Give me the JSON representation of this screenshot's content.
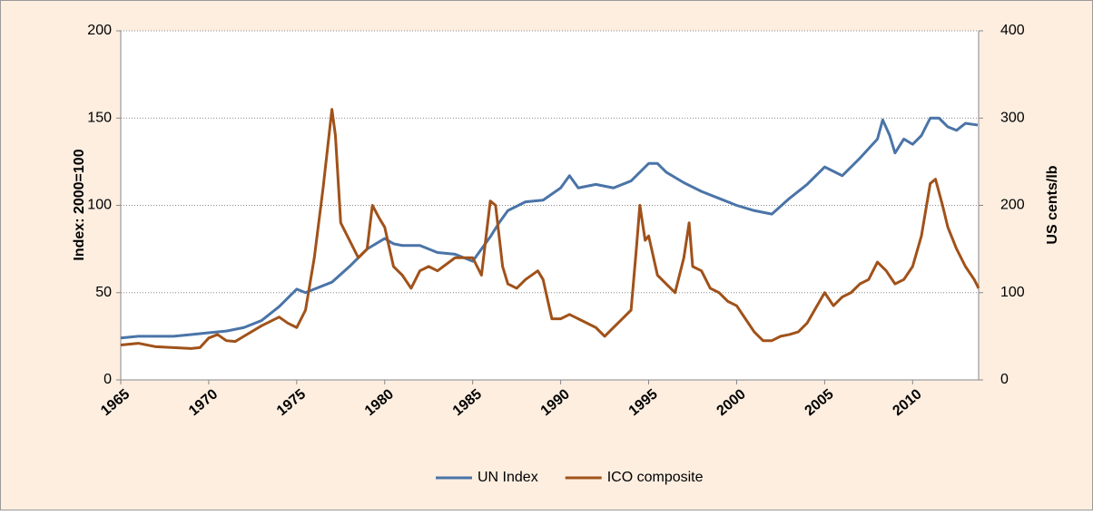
{
  "chart_data": {
    "type": "line",
    "y_label": "Index: 2000=100",
    "y2_label": "US cents/lb",
    "xlim": [
      1965,
      2013.75
    ],
    "xticks": [
      1965,
      1970,
      1975,
      1980,
      1985,
      1990,
      1995,
      2000,
      2005,
      2010
    ],
    "ylim": [
      0,
      200
    ],
    "yticks": [
      0,
      50,
      100,
      150,
      200
    ],
    "y2lim": [
      0,
      400
    ],
    "y2ticks": [
      0,
      100,
      200,
      300,
      400
    ],
    "grid": true,
    "legend": "bottom",
    "series": [
      {
        "name": "UN Index",
        "color": "#4a74a8",
        "x": [
          1965,
          1966,
          1967,
          1968,
          1969,
          1970,
          1971,
          1972,
          1973,
          1974,
          1975,
          1975.5,
          1976,
          1977,
          1978,
          1979,
          1980,
          1980.5,
          1981,
          1982,
          1983,
          1984,
          1985,
          1985.5,
          1986,
          1986.5,
          1987,
          1988,
          1989,
          1990,
          1990.5,
          1991,
          1992,
          1993,
          1994,
          1995,
          1995.5,
          1996,
          1997,
          1998,
          1999,
          2000,
          2001,
          2002,
          2003,
          2004,
          2005,
          2006,
          2007,
          2008,
          2008.3,
          2008.7,
          2009,
          2009.5,
          2010,
          2010.5,
          2011,
          2011.5,
          2012,
          2012.5,
          2013,
          2013.7
        ],
        "values": [
          24,
          25,
          25,
          25,
          26,
          27,
          28,
          30,
          34,
          42,
          52,
          50,
          52,
          56,
          65,
          75,
          81,
          78,
          77,
          77,
          73,
          72,
          68,
          75,
          82,
          90,
          97,
          102,
          103,
          110,
          117,
          110,
          112,
          110,
          114,
          124,
          124,
          119,
          113,
          108,
          104,
          100,
          97,
          95,
          104,
          112,
          122,
          117,
          127,
          138,
          149,
          140,
          130,
          138,
          135,
          140,
          150,
          150,
          145,
          143,
          147,
          146
        ]
      },
      {
        "name": "ICO composite",
        "color": "#a0521a",
        "axis": "y2",
        "x": [
          1965,
          1966,
          1967,
          1968,
          1969,
          1969.5,
          1970,
          1970.5,
          1971,
          1971.5,
          1972,
          1973,
          1974,
          1974.5,
          1975,
          1975.5,
          1976,
          1976.5,
          1977,
          1977.2,
          1977.5,
          1978,
          1978.5,
          1979,
          1979.3,
          1979.7,
          1980,
          1980.5,
          1981,
          1981.5,
          1982,
          1982.5,
          1983,
          1984,
          1985,
          1985.5,
          1986,
          1986.3,
          1986.7,
          1987,
          1987.5,
          1988,
          1988.7,
          1989,
          1989.5,
          1990,
          1990.5,
          1991,
          1992,
          1992.5,
          1993,
          1993.5,
          1994,
          1994.3,
          1994.5,
          1994.8,
          1995,
          1995.5,
          1996,
          1996.5,
          1997,
          1997.3,
          1997.5,
          1998,
          1998.5,
          1999,
          1999.5,
          2000,
          2000.5,
          2001,
          2001.5,
          2002,
          2002.5,
          2003,
          2003.5,
          2004,
          2005,
          2005.5,
          2006,
          2006.5,
          2007,
          2007.5,
          2008,
          2008.5,
          2009,
          2009.5,
          2010,
          2010.5,
          2011,
          2011.3,
          2011.7,
          2012,
          2012.5,
          2013,
          2013.5,
          2013.75
        ],
        "values": [
          40,
          42,
          38,
          37,
          36,
          37,
          48,
          52,
          45,
          44,
          50,
          62,
          72,
          65,
          60,
          80,
          140,
          220,
          310,
          280,
          180,
          160,
          140,
          150,
          200,
          185,
          175,
          130,
          120,
          105,
          125,
          130,
          125,
          140,
          140,
          120,
          205,
          200,
          130,
          110,
          105,
          115,
          125,
          115,
          70,
          70,
          75,
          70,
          60,
          50,
          60,
          70,
          80,
          150,
          200,
          160,
          165,
          120,
          110,
          100,
          140,
          180,
          130,
          125,
          105,
          100,
          90,
          85,
          70,
          55,
          45,
          45,
          50,
          52,
          55,
          65,
          100,
          85,
          95,
          100,
          110,
          115,
          135,
          125,
          110,
          115,
          130,
          165,
          225,
          230,
          200,
          175,
          150,
          130,
          115,
          105
        ]
      }
    ]
  }
}
